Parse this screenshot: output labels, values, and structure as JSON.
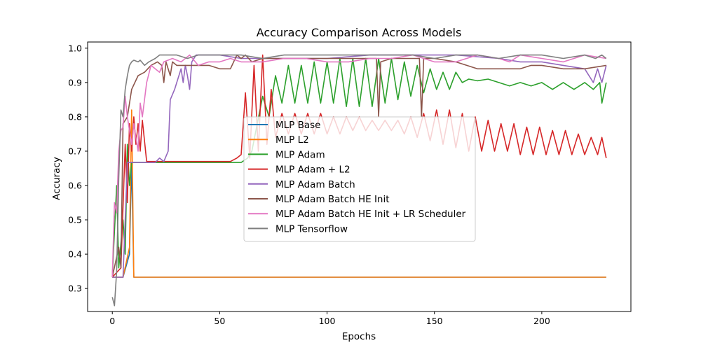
{
  "chart_data": {
    "type": "line",
    "title": "Accuracy Comparison Across Models",
    "xlabel": "Epochs",
    "ylabel": "Accuracy",
    "xlim": [
      -11.5,
      241.5
    ],
    "ylim": [
      0.233,
      1.018
    ],
    "xticks": [
      0,
      50,
      100,
      150,
      200
    ],
    "yticks": [
      0.3,
      0.4,
      0.5,
      0.6,
      0.7,
      0.8,
      0.9,
      1.0
    ],
    "grid": false,
    "legend_position": "center",
    "series": [
      {
        "name": "MLP Base",
        "color": "#1f77b4",
        "points": [
          [
            0,
            0.333
          ],
          [
            5,
            0.333
          ],
          [
            8,
            0.4
          ],
          [
            9,
            0.667
          ],
          [
            10,
            0.333
          ],
          [
            230,
            0.333
          ]
        ]
      },
      {
        "name": "MLP L2",
        "color": "#ff7f0e",
        "points": [
          [
            0,
            0.333
          ],
          [
            5,
            0.333
          ],
          [
            8,
            0.42
          ],
          [
            9,
            0.82
          ],
          [
            10,
            0.333
          ],
          [
            230,
            0.333
          ]
        ]
      },
      {
        "name": "MLP Adam",
        "color": "#2ca02c",
        "points": [
          [
            0,
            0.333
          ],
          [
            2,
            0.6
          ],
          [
            3,
            0.36
          ],
          [
            5,
            0.5
          ],
          [
            6,
            0.4
          ],
          [
            7,
            0.72
          ],
          [
            8,
            0.6
          ],
          [
            9,
            0.667
          ],
          [
            60,
            0.667
          ],
          [
            63,
            0.68
          ],
          [
            65,
            0.7
          ],
          [
            70,
            0.86
          ],
          [
            73,
            0.8
          ],
          [
            76,
            0.92
          ],
          [
            79,
            0.84
          ],
          [
            82,
            0.95
          ],
          [
            85,
            0.84
          ],
          [
            88,
            0.95
          ],
          [
            91,
            0.84
          ],
          [
            94,
            0.96
          ],
          [
            97,
            0.84
          ],
          [
            100,
            0.96
          ],
          [
            103,
            0.84
          ],
          [
            106,
            0.97
          ],
          [
            109,
            0.83
          ],
          [
            112,
            0.97
          ],
          [
            115,
            0.83
          ],
          [
            118,
            0.97
          ],
          [
            121,
            0.83
          ],
          [
            124,
            0.97
          ],
          [
            127,
            0.84
          ],
          [
            130,
            0.97
          ],
          [
            133,
            0.85
          ],
          [
            136,
            0.96
          ],
          [
            139,
            0.86
          ],
          [
            142,
            0.95
          ],
          [
            145,
            0.87
          ],
          [
            148,
            0.94
          ],
          [
            151,
            0.88
          ],
          [
            154,
            0.93
          ],
          [
            157,
            0.88
          ],
          [
            160,
            0.93
          ],
          [
            163,
            0.9
          ],
          [
            166,
            0.91
          ],
          [
            170,
            0.905
          ],
          [
            175,
            0.91
          ],
          [
            180,
            0.9
          ],
          [
            185,
            0.89
          ],
          [
            190,
            0.9
          ],
          [
            195,
            0.89
          ],
          [
            200,
            0.9
          ],
          [
            205,
            0.88
          ],
          [
            210,
            0.9
          ],
          [
            215,
            0.88
          ],
          [
            220,
            0.9
          ],
          [
            224,
            0.88
          ],
          [
            227,
            0.9
          ],
          [
            228,
            0.84
          ],
          [
            230,
            0.9
          ]
        ]
      },
      {
        "name": "MLP Adam + L2",
        "color": "#d62728",
        "points": [
          [
            0,
            0.333
          ],
          [
            4,
            0.36
          ],
          [
            6,
            0.72
          ],
          [
            7,
            0.55
          ],
          [
            8,
            0.78
          ],
          [
            9,
            0.7
          ],
          [
            10,
            0.8
          ],
          [
            11,
            0.72
          ],
          [
            12,
            0.78
          ],
          [
            13,
            0.7
          ],
          [
            14,
            0.79
          ],
          [
            16,
            0.67
          ],
          [
            55,
            0.67
          ],
          [
            58,
            0.68
          ],
          [
            60,
            0.69
          ],
          [
            62,
            0.87
          ],
          [
            64,
            0.68
          ],
          [
            66,
            0.95
          ],
          [
            68,
            0.7
          ],
          [
            70,
            0.98
          ],
          [
            72,
            0.72
          ],
          [
            74,
            0.88
          ],
          [
            76,
            0.74
          ],
          [
            79,
            0.81
          ],
          [
            82,
            0.75
          ],
          [
            85,
            0.81
          ],
          [
            88,
            0.75
          ],
          [
            91,
            0.81
          ],
          [
            94,
            0.75
          ],
          [
            97,
            0.81
          ],
          [
            100,
            0.75
          ],
          [
            103,
            0.8
          ],
          [
            106,
            0.75
          ],
          [
            109,
            0.8
          ],
          [
            112,
            0.76
          ],
          [
            115,
            0.8
          ],
          [
            118,
            0.76
          ],
          [
            121,
            0.79
          ],
          [
            124,
            0.76
          ],
          [
            127,
            0.79
          ],
          [
            130,
            0.76
          ],
          [
            133,
            0.79
          ],
          [
            136,
            0.75
          ],
          [
            139,
            0.8
          ],
          [
            142,
            0.74
          ],
          [
            145,
            0.81
          ],
          [
            148,
            0.73
          ],
          [
            151,
            0.82
          ],
          [
            154,
            0.72
          ],
          [
            157,
            0.82
          ],
          [
            160,
            0.71
          ],
          [
            163,
            0.81
          ],
          [
            166,
            0.7
          ],
          [
            169,
            0.8
          ],
          [
            172,
            0.7
          ],
          [
            175,
            0.79
          ],
          [
            178,
            0.7
          ],
          [
            181,
            0.78
          ],
          [
            184,
            0.7
          ],
          [
            187,
            0.78
          ],
          [
            190,
            0.69
          ],
          [
            193,
            0.77
          ],
          [
            196,
            0.69
          ],
          [
            199,
            0.77
          ],
          [
            202,
            0.69
          ],
          [
            205,
            0.76
          ],
          [
            208,
            0.69
          ],
          [
            211,
            0.76
          ],
          [
            214,
            0.69
          ],
          [
            217,
            0.75
          ],
          [
            220,
            0.69
          ],
          [
            223,
            0.74
          ],
          [
            226,
            0.69
          ],
          [
            228,
            0.74
          ],
          [
            230,
            0.68
          ]
        ]
      },
      {
        "name": "MLP Adam Batch",
        "color": "#9467bd",
        "points": [
          [
            0,
            0.333
          ],
          [
            5,
            0.333
          ],
          [
            7,
            0.667
          ],
          [
            20,
            0.667
          ],
          [
            22,
            0.68
          ],
          [
            24,
            0.67
          ],
          [
            26,
            0.7
          ],
          [
            27,
            0.85
          ],
          [
            29,
            0.88
          ],
          [
            31,
            0.92
          ],
          [
            32,
            0.94
          ],
          [
            33,
            0.9
          ],
          [
            34,
            0.95
          ],
          [
            35,
            0.92
          ],
          [
            36,
            0.88
          ],
          [
            37,
            0.96
          ],
          [
            39,
            0.98
          ],
          [
            42,
            0.98
          ],
          [
            45,
            0.98
          ],
          [
            50,
            0.98
          ],
          [
            60,
            0.97
          ],
          [
            80,
            0.97
          ],
          [
            100,
            0.97
          ],
          [
            120,
            0.98
          ],
          [
            140,
            0.98
          ],
          [
            160,
            0.98
          ],
          [
            180,
            0.97
          ],
          [
            190,
            0.96
          ],
          [
            200,
            0.96
          ],
          [
            210,
            0.95
          ],
          [
            220,
            0.94
          ],
          [
            224,
            0.9
          ],
          [
            226,
            0.94
          ],
          [
            228,
            0.9
          ],
          [
            230,
            0.95
          ]
        ]
      },
      {
        "name": "MLP Adam Batch HE Init",
        "color": "#8c564b",
        "points": [
          [
            0,
            0.333
          ],
          [
            3,
            0.42
          ],
          [
            4,
            0.36
          ],
          [
            5,
            0.78
          ],
          [
            7,
            0.8
          ],
          [
            9,
            0.88
          ],
          [
            12,
            0.92
          ],
          [
            15,
            0.93
          ],
          [
            18,
            0.95
          ],
          [
            21,
            0.96
          ],
          [
            23,
            0.95
          ],
          [
            24,
            0.9
          ],
          [
            25,
            0.96
          ],
          [
            27,
            0.92
          ],
          [
            28,
            0.96
          ],
          [
            30,
            0.95
          ],
          [
            35,
            0.95
          ],
          [
            45,
            0.95
          ],
          [
            50,
            0.94
          ],
          [
            55,
            0.94
          ],
          [
            58,
            0.98
          ],
          [
            60,
            0.97
          ],
          [
            62,
            0.98
          ],
          [
            65,
            0.96
          ],
          [
            70,
            0.97
          ],
          [
            80,
            0.97
          ],
          [
            90,
            0.97
          ],
          [
            100,
            0.97
          ],
          [
            110,
            0.97
          ],
          [
            120,
            0.97
          ],
          [
            123,
            0.97
          ],
          [
            124,
            0.8
          ],
          [
            125,
            0.96
          ],
          [
            130,
            0.97
          ],
          [
            140,
            0.97
          ],
          [
            143,
            0.97
          ],
          [
            144,
            0.8
          ],
          [
            145,
            0.97
          ],
          [
            150,
            0.97
          ],
          [
            160,
            0.96
          ],
          [
            170,
            0.94
          ],
          [
            180,
            0.94
          ],
          [
            190,
            0.94
          ],
          [
            195,
            0.95
          ],
          [
            200,
            0.95
          ],
          [
            210,
            0.94
          ],
          [
            220,
            0.94
          ],
          [
            230,
            0.95
          ]
        ]
      },
      {
        "name": "MLP Adam Batch HE Init + LR Scheduler",
        "color": "#e377c2",
        "points": [
          [
            0,
            0.333
          ],
          [
            1,
            0.55
          ],
          [
            2,
            0.52
          ],
          [
            3,
            0.7
          ],
          [
            4,
            0.76
          ],
          [
            5,
            0.77
          ],
          [
            6,
            0.86
          ],
          [
            7,
            0.8
          ],
          [
            9,
            0.72
          ],
          [
            10,
            0.78
          ],
          [
            12,
            0.7
          ],
          [
            13,
            0.84
          ],
          [
            14,
            0.8
          ],
          [
            16,
            0.9
          ],
          [
            18,
            0.95
          ],
          [
            22,
            0.93
          ],
          [
            24,
            0.96
          ],
          [
            28,
            0.97
          ],
          [
            32,
            0.96
          ],
          [
            36,
            0.98
          ],
          [
            40,
            0.95
          ],
          [
            45,
            0.96
          ],
          [
            50,
            0.96
          ],
          [
            55,
            0.97
          ],
          [
            60,
            0.96
          ],
          [
            70,
            0.96
          ],
          [
            80,
            0.97
          ],
          [
            90,
            0.97
          ],
          [
            100,
            0.96
          ],
          [
            110,
            0.96
          ],
          [
            120,
            0.97
          ],
          [
            130,
            0.97
          ],
          [
            140,
            0.98
          ],
          [
            150,
            0.96
          ],
          [
            160,
            0.96
          ],
          [
            170,
            0.98
          ],
          [
            180,
            0.97
          ],
          [
            185,
            0.96
          ],
          [
            190,
            0.98
          ],
          [
            200,
            0.97
          ],
          [
            210,
            0.96
          ],
          [
            220,
            0.98
          ],
          [
            230,
            0.97
          ]
        ]
      },
      {
        "name": "MLP Tensorflow",
        "color": "#7f7f7f",
        "points": [
          [
            0,
            0.275
          ],
          [
            1,
            0.25
          ],
          [
            2,
            0.35
          ],
          [
            3,
            0.62
          ],
          [
            4,
            0.82
          ],
          [
            5,
            0.8
          ],
          [
            6,
            0.88
          ],
          [
            7,
            0.92
          ],
          [
            8,
            0.95
          ],
          [
            9,
            0.96
          ],
          [
            10,
            0.965
          ],
          [
            12,
            0.96
          ],
          [
            13,
            0.965
          ],
          [
            15,
            0.95
          ],
          [
            17,
            0.96
          ],
          [
            20,
            0.97
          ],
          [
            22,
            0.98
          ],
          [
            25,
            0.98
          ],
          [
            30,
            0.98
          ],
          [
            35,
            0.97
          ],
          [
            40,
            0.98
          ],
          [
            50,
            0.98
          ],
          [
            60,
            0.98
          ],
          [
            70,
            0.97
          ],
          [
            80,
            0.98
          ],
          [
            90,
            0.98
          ],
          [
            100,
            0.98
          ],
          [
            110,
            0.98
          ],
          [
            120,
            0.98
          ],
          [
            130,
            0.98
          ],
          [
            140,
            0.98
          ],
          [
            150,
            0.97
          ],
          [
            160,
            0.98
          ],
          [
            170,
            0.98
          ],
          [
            180,
            0.97
          ],
          [
            190,
            0.98
          ],
          [
            200,
            0.98
          ],
          [
            210,
            0.97
          ],
          [
            220,
            0.98
          ],
          [
            225,
            0.97
          ],
          [
            228,
            0.98
          ],
          [
            230,
            0.97
          ]
        ]
      }
    ]
  }
}
